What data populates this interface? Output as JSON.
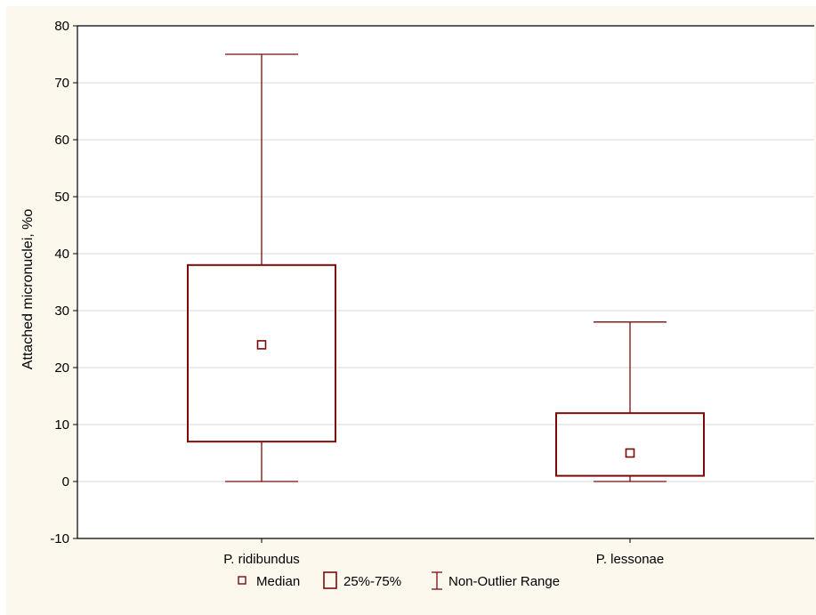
{
  "chart_data": {
    "type": "box",
    "ylabel": "Attached micronuclei, %o",
    "ylim": [
      -10,
      80
    ],
    "yticks": [
      -10,
      0,
      10,
      20,
      30,
      40,
      50,
      60,
      70,
      80
    ],
    "grid": true,
    "categories": [
      "P. ridibundus",
      "P. lessonae"
    ],
    "boxes": [
      {
        "category": "P. ridibundus",
        "min": 0,
        "q1": 7,
        "median": 24,
        "q3": 38,
        "max": 75
      },
      {
        "category": "P. lessonae",
        "min": 0,
        "q1": 1,
        "median": 5,
        "q3": 12,
        "max": 28
      }
    ],
    "legend": {
      "position": "bottom-center",
      "items": [
        "Median",
        "25%-75%",
        "Non-Outlier Range"
      ]
    },
    "colors": {
      "box": "#7a0a0a",
      "background": "#fdf8ee",
      "plot_area": "#ffffff",
      "grid": "#d8d8d8"
    }
  }
}
